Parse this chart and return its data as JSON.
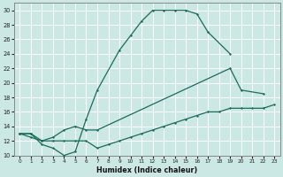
{
  "bg_color": "#cce8e5",
  "grid_color": "#ffffff",
  "line_color": "#1a6b5a",
  "xlabel": "Humidex (Indice chaleur)",
  "xlim": [
    -0.5,
    23.5
  ],
  "ylim": [
    10,
    31
  ],
  "yticks": [
    10,
    12,
    14,
    16,
    18,
    20,
    22,
    24,
    26,
    28,
    30
  ],
  "xticks": [
    0,
    1,
    2,
    3,
    4,
    5,
    6,
    7,
    8,
    9,
    10,
    11,
    12,
    13,
    14,
    15,
    16,
    17,
    18,
    19,
    20,
    21,
    22,
    23
  ],
  "curve1_x": [
    0,
    1,
    2,
    3,
    4,
    5,
    6,
    7,
    9,
    10,
    11,
    12,
    13,
    14,
    15,
    16,
    17,
    19
  ],
  "curve1_y": [
    13,
    13,
    11.5,
    11,
    10,
    10.5,
    15,
    19,
    24.5,
    26.5,
    28.5,
    30,
    30,
    30,
    30,
    29.5,
    27,
    24
  ],
  "curve2_x": [
    0,
    1,
    2,
    3,
    4,
    5,
    6,
    7,
    19,
    20,
    22
  ],
  "curve2_y": [
    13,
    13,
    12,
    12.5,
    13.5,
    14,
    13.5,
    13.5,
    22,
    19,
    18.5
  ],
  "curve3_x": [
    0,
    1,
    2,
    3,
    4,
    5,
    6,
    7,
    8,
    9,
    10,
    11,
    12,
    13,
    14,
    15,
    16,
    17,
    18,
    19,
    20,
    21,
    22,
    23
  ],
  "curve3_y": [
    13,
    12.5,
    12,
    12,
    12,
    12,
    12,
    11,
    11.5,
    12,
    12.5,
    13,
    13.5,
    14,
    14.5,
    15,
    15.5,
    16,
    16,
    16.5,
    16.5,
    16.5,
    16.5,
    17
  ]
}
